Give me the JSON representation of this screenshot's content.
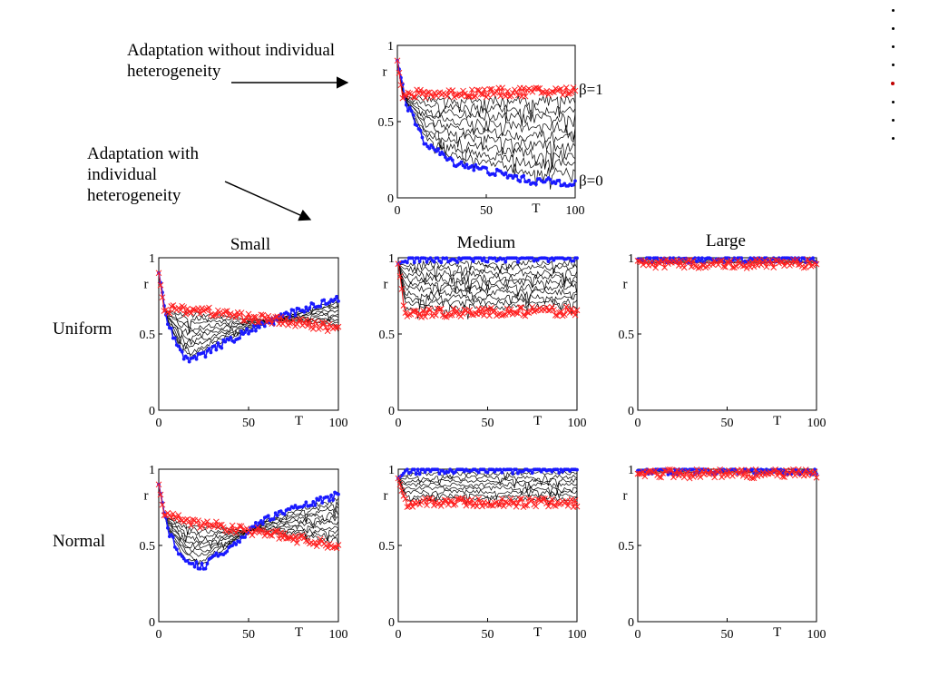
{
  "annotations": {
    "without": "Adaptation without individual\nheterogeneity",
    "with": "Adaptation with\nindividual\nheterogeneity"
  },
  "column_headings": [
    "Small",
    "Medium",
    "Large"
  ],
  "row_labels": [
    "Uniform",
    "Normal"
  ],
  "colors": {
    "low_beta": "#1a1aff",
    "high_beta": "#ff2020",
    "intermediate": "#000000",
    "active_dot": "#c00000"
  },
  "slide_nav": {
    "count": 8,
    "active_index": 4
  },
  "chart_data": [
    {
      "id": "top",
      "type": "line",
      "title": "",
      "xlabel": "T",
      "ylabel": "r",
      "xlim": [
        0,
        100
      ],
      "ylim": [
        0,
        1
      ],
      "xticks": [
        "0",
        "50",
        "100"
      ],
      "yticks": [
        "0",
        "0.5",
        "1"
      ],
      "series_labels": [
        "β=1",
        "β=0"
      ],
      "series": [
        {
          "role": "beta1",
          "points": [
            [
              0,
              0.9
            ],
            [
              3,
              0.66
            ],
            [
              10,
              0.68
            ],
            [
              50,
              0.69
            ],
            [
              100,
              0.7
            ]
          ]
        },
        {
          "role": "beta0",
          "points": [
            [
              0,
              0.9
            ],
            [
              5,
              0.62
            ],
            [
              15,
              0.37
            ],
            [
              30,
              0.24
            ],
            [
              50,
              0.18
            ],
            [
              75,
              0.11
            ],
            [
              100,
              0.1
            ]
          ]
        }
      ],
      "intermediate_count": 9
    },
    {
      "id": "uniform-small",
      "type": "line",
      "title": "Small",
      "xlabel": "T",
      "ylabel": "r",
      "xlim": [
        0,
        100
      ],
      "ylim": [
        0,
        1
      ],
      "xticks": [
        "0",
        "50",
        "100"
      ],
      "yticks": [
        "0",
        "0.5",
        "1"
      ],
      "series": [
        {
          "role": "beta1",
          "points": [
            [
              0,
              0.9
            ],
            [
              3,
              0.66
            ],
            [
              20,
              0.66
            ],
            [
              50,
              0.61
            ],
            [
              100,
              0.54
            ]
          ]
        },
        {
          "role": "beta0",
          "points": [
            [
              0,
              0.9
            ],
            [
              5,
              0.58
            ],
            [
              12,
              0.38
            ],
            [
              18,
              0.32
            ],
            [
              30,
              0.4
            ],
            [
              50,
              0.52
            ],
            [
              75,
              0.64
            ],
            [
              100,
              0.74
            ]
          ]
        }
      ],
      "intermediate_count": 10
    },
    {
      "id": "uniform-medium",
      "type": "line",
      "title": "Medium",
      "xlabel": "T",
      "ylabel": "r",
      "xlim": [
        0,
        100
      ],
      "ylim": [
        0,
        1
      ],
      "xticks": [
        "0",
        "50",
        "100"
      ],
      "yticks": [
        "0",
        "0.5",
        "1"
      ],
      "series": [
        {
          "role": "beta1",
          "points": [
            [
              0,
              0.96
            ],
            [
              4,
              0.63
            ],
            [
              20,
              0.64
            ],
            [
              100,
              0.65
            ]
          ]
        },
        {
          "role": "beta0",
          "points": [
            [
              0,
              0.96
            ],
            [
              5,
              0.99
            ],
            [
              100,
              1.0
            ]
          ]
        }
      ],
      "intermediate_count": 10
    },
    {
      "id": "uniform-large",
      "type": "line",
      "title": "Large",
      "xlabel": "T",
      "ylabel": "r",
      "xlim": [
        0,
        100
      ],
      "ylim": [
        0,
        1
      ],
      "xticks": [
        "0",
        "50",
        "100"
      ],
      "yticks": [
        "0",
        "0.5",
        "1"
      ],
      "series": [
        {
          "role": "beta1",
          "points": [
            [
              0,
              0.98
            ],
            [
              5,
              0.96
            ],
            [
              100,
              0.96
            ]
          ]
        },
        {
          "role": "beta0",
          "points": [
            [
              0,
              0.99
            ],
            [
              100,
              0.99
            ]
          ]
        }
      ],
      "intermediate_count": 3
    },
    {
      "id": "normal-small",
      "type": "line",
      "title": "",
      "xlabel": "T",
      "ylabel": "r",
      "xlim": [
        0,
        100
      ],
      "ylim": [
        0,
        1
      ],
      "xticks": [
        "0",
        "50",
        "100"
      ],
      "yticks": [
        "0",
        "0.5",
        "1"
      ],
      "series": [
        {
          "role": "beta1",
          "points": [
            [
              0,
              0.9
            ],
            [
              3,
              0.7
            ],
            [
              20,
              0.65
            ],
            [
              50,
              0.6
            ],
            [
              100,
              0.5
            ]
          ]
        },
        {
          "role": "beta0",
          "points": [
            [
              0,
              0.9
            ],
            [
              5,
              0.6
            ],
            [
              15,
              0.38
            ],
            [
              25,
              0.36
            ],
            [
              40,
              0.5
            ],
            [
              60,
              0.68
            ],
            [
              80,
              0.76
            ],
            [
              100,
              0.83
            ]
          ]
        }
      ],
      "intermediate_count": 10
    },
    {
      "id": "normal-medium",
      "type": "line",
      "title": "",
      "xlabel": "T",
      "ylabel": "r",
      "xlim": [
        0,
        100
      ],
      "ylim": [
        0,
        1
      ],
      "xticks": [
        "0",
        "50",
        "100"
      ],
      "yticks": [
        "0",
        "0.5",
        "1"
      ],
      "series": [
        {
          "role": "beta1",
          "points": [
            [
              0,
              0.94
            ],
            [
              4,
              0.78
            ],
            [
              100,
              0.78
            ]
          ]
        },
        {
          "role": "beta0",
          "points": [
            [
              0,
              0.94
            ],
            [
              5,
              0.99
            ],
            [
              100,
              1.0
            ]
          ]
        }
      ],
      "intermediate_count": 8
    },
    {
      "id": "normal-large",
      "type": "line",
      "title": "",
      "xlabel": "T",
      "ylabel": "r",
      "xlim": [
        0,
        100
      ],
      "ylim": [
        0,
        1
      ],
      "xticks": [
        "0",
        "50",
        "100"
      ],
      "yticks": [
        "0",
        "0.5",
        "1"
      ],
      "series": [
        {
          "role": "beta1",
          "points": [
            [
              0,
              0.97
            ],
            [
              100,
              0.97
            ]
          ]
        },
        {
          "role": "beta0",
          "points": [
            [
              0,
              0.99
            ],
            [
              100,
              0.99
            ]
          ]
        }
      ],
      "intermediate_count": 2
    }
  ]
}
